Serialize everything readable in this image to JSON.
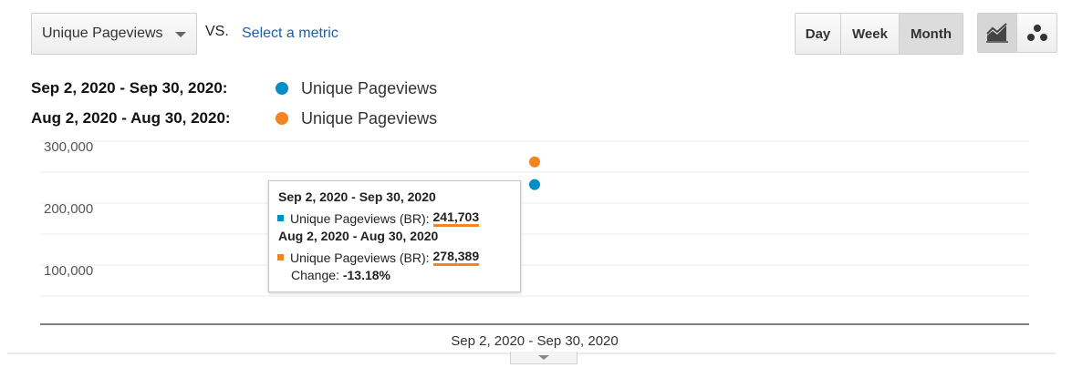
{
  "controls": {
    "metric_select": "Unique Pageviews",
    "vs_label": "VS.",
    "select_metric_link": "Select a metric",
    "periods": [
      "Day",
      "Week",
      "Month"
    ],
    "active_period": "Month",
    "view_icons": [
      "line-chart-icon",
      "motion-chart-icon"
    ]
  },
  "legend": [
    {
      "range": "Sep 2, 2020 - Sep 30, 2020:",
      "metric": "Unique Pageviews",
      "color": "#058dc7"
    },
    {
      "range": "Aug 2, 2020 - Aug 30, 2020:",
      "metric": "Unique Pageviews",
      "color": "#f5831f"
    }
  ],
  "chart_data": {
    "type": "scatter",
    "y_ticks": [
      "300,000",
      "200,000",
      "100,000"
    ],
    "ylim": [
      0,
      300000
    ],
    "categories": [
      "Sep 2, 2020 - Sep 30, 2020"
    ],
    "grid": true,
    "series": [
      {
        "name": "Unique Pageviews",
        "period": "Sep 2, 2020 - Sep 30, 2020",
        "values": [
          241703
        ],
        "color": "#058dc7"
      },
      {
        "name": "Unique Pageviews",
        "period": "Aug 2, 2020 - Aug 30, 2020",
        "values": [
          278389
        ],
        "color": "#f5831f"
      }
    ]
  },
  "tooltip": {
    "range1": "Sep 2, 2020 - Sep 30, 2020",
    "label1": "Unique Pageviews (BR):",
    "value1": "241,703",
    "range2": "Aug 2, 2020 - Aug 30, 2020",
    "label2": "Unique Pageviews (BR):",
    "value2": "278,389",
    "change_label": "Change:",
    "change_value": "-13.18%"
  }
}
